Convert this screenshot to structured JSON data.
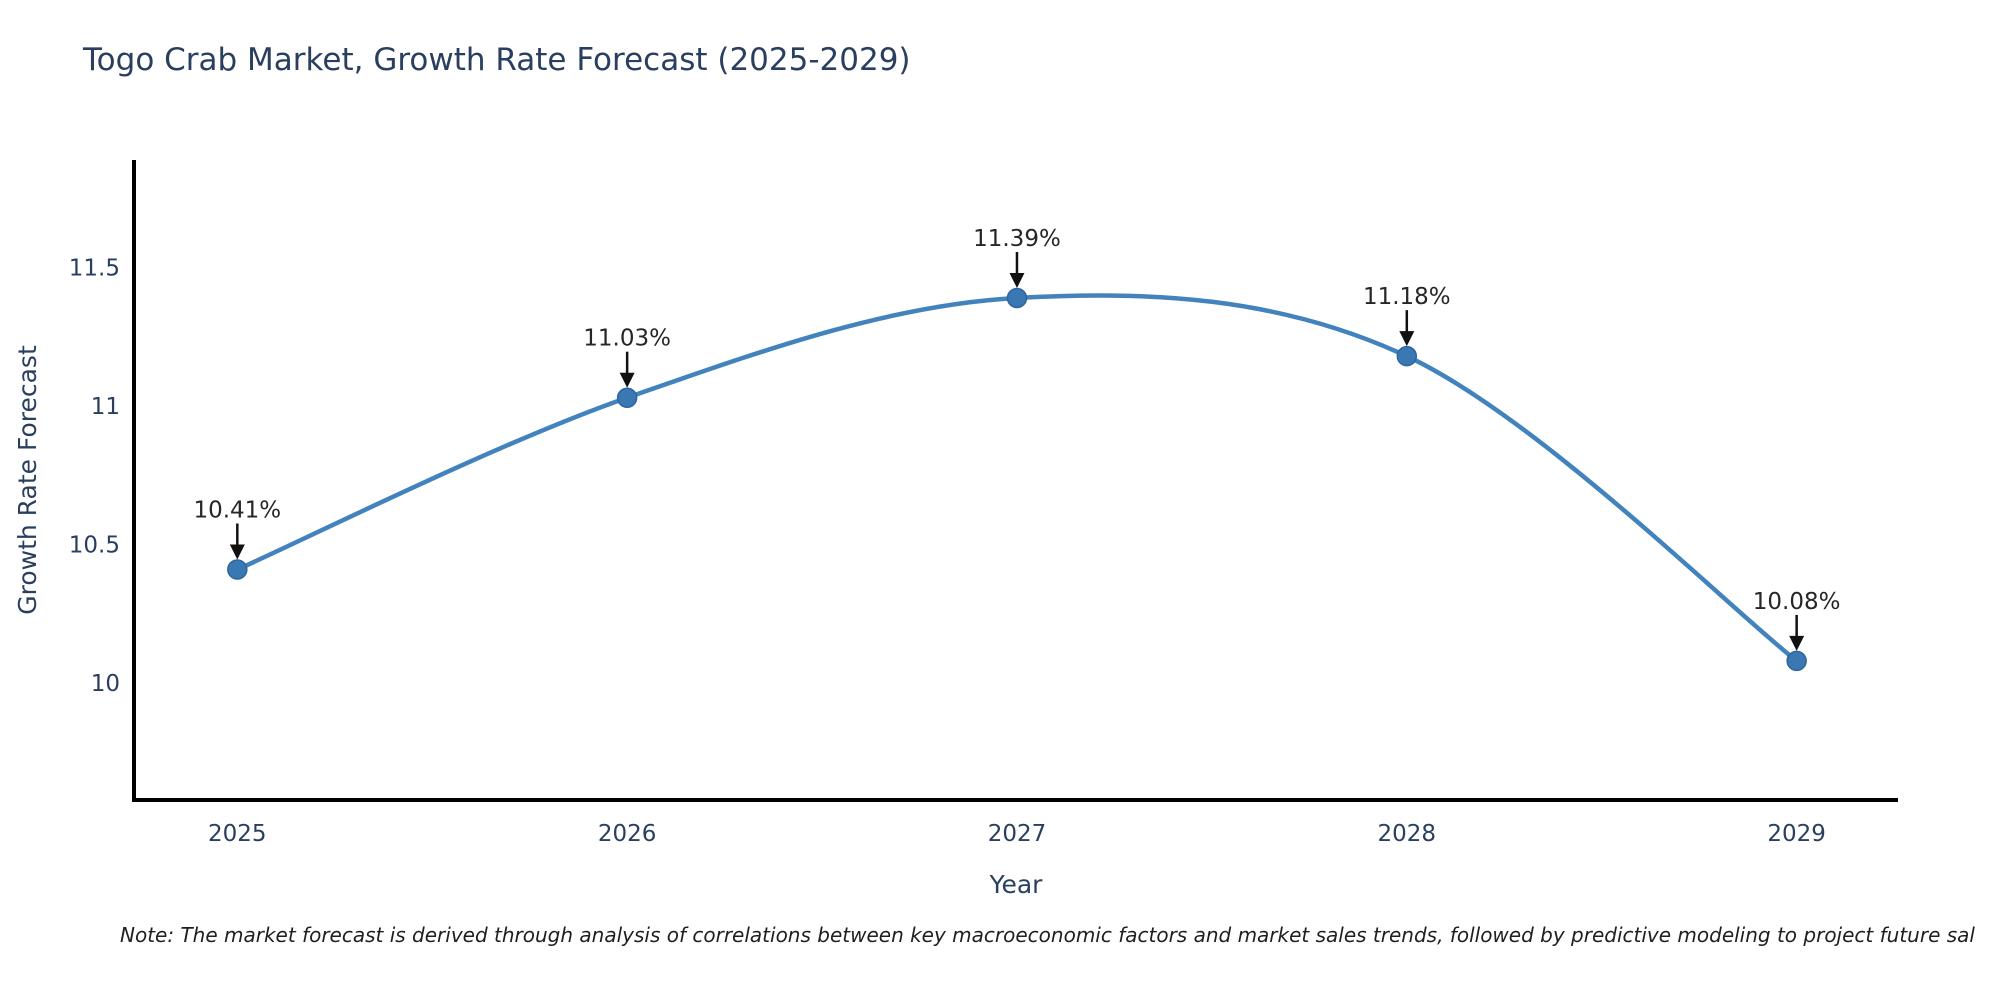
{
  "title": "Togo Crab Market, Growth Rate Forecast (2025-2029)",
  "note": "Note: The market forecast is derived through analysis of correlations between key macroeconomic factors and market sales trends, followed by predictive modeling to project future sal",
  "chart_data": {
    "type": "line",
    "title": "Togo Crab Market, Growth Rate Forecast (2025-2029)",
    "xlabel": "Year",
    "ylabel": "Growth Rate Forecast",
    "x": [
      2025,
      2026,
      2027,
      2028,
      2029
    ],
    "values": [
      10.41,
      11.03,
      11.39,
      11.18,
      10.08
    ],
    "point_labels": [
      "10.41%",
      "11.03%",
      "11.39%",
      "11.18%",
      "10.08%"
    ],
    "xtick_labels": [
      "2025",
      "2026",
      "2027",
      "2028",
      "2029"
    ],
    "yticks": [
      10,
      10.5,
      11,
      11.5
    ],
    "ytick_labels": [
      "10",
      "10.5",
      "11",
      "11.5"
    ],
    "xlim": [
      2024.735,
      2029.26
    ],
    "ylim": [
      9.578,
      11.888
    ],
    "grid": false,
    "legend": "none",
    "line_color": "#4383bd",
    "marker_color": "#3a78b3",
    "marker_edge_color": "#2e659e",
    "annotation_arrow_color": "#111111",
    "axis_color": "#000000",
    "label_color": "#2a3f5f"
  }
}
